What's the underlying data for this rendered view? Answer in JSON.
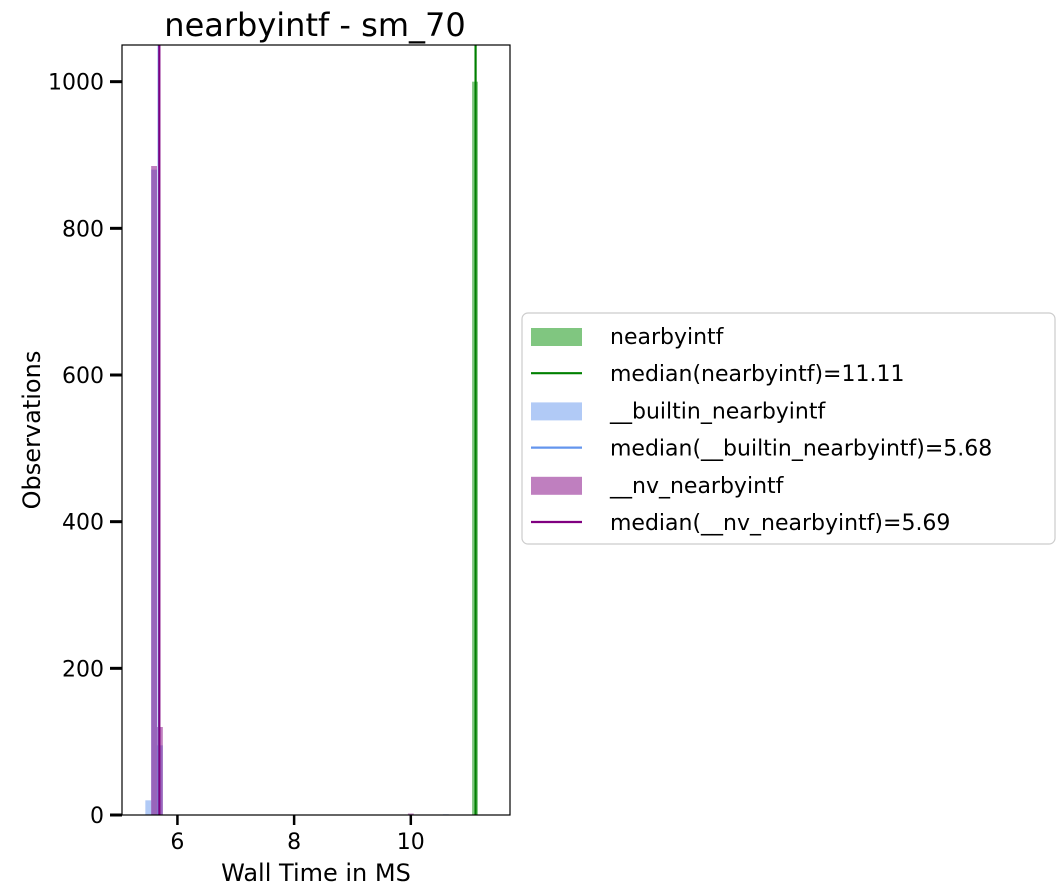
{
  "chart_data": {
    "type": "histogram",
    "title": "nearbyintf - sm_70",
    "xlabel": "Wall Time in MS",
    "ylabel": "Observations",
    "xlim": [
      5.05,
      11.7
    ],
    "ylim": [
      0,
      1050
    ],
    "xticks": [
      6,
      8,
      10
    ],
    "yticks": [
      0,
      200,
      400,
      600,
      800,
      1000
    ],
    "bin_width": 0.1,
    "grid": false,
    "legend_position": "outside-right",
    "series": [
      {
        "name": "nearbyintf",
        "color": "#2ca02c",
        "alpha": 0.6,
        "bins": [
          {
            "x": 11.1,
            "count": 1000
          }
        ]
      },
      {
        "name": "__builtin_nearbyintf",
        "color": "#6495ed",
        "alpha": 0.5,
        "bins": [
          {
            "x": 5.5,
            "count": 20
          },
          {
            "x": 5.6,
            "count": 880
          },
          {
            "x": 5.7,
            "count": 95
          },
          {
            "x": 10.6,
            "count": 1
          }
        ]
      },
      {
        "name": "__nv_nearbyintf",
        "color": "#800080",
        "alpha": 0.5,
        "bins": [
          {
            "x": 5.6,
            "count": 885
          },
          {
            "x": 5.7,
            "count": 120
          },
          {
            "x": 10.0,
            "count": 2
          }
        ]
      }
    ],
    "medians": [
      {
        "label": "median(nearbyintf)=11.11",
        "value": 11.11,
        "color": "#008000"
      },
      {
        "label": "median(__builtin_nearbyintf)=5.68",
        "value": 5.68,
        "color": "#6495ed"
      },
      {
        "label": "median(__nv_nearbyintf)=5.69",
        "value": 5.69,
        "color": "#800080"
      }
    ],
    "legend": [
      {
        "kind": "patch",
        "label": "nearbyintf",
        "color": "#2ca02c",
        "alpha": 0.6
      },
      {
        "kind": "line",
        "label": "median(nearbyintf)=11.11",
        "color": "#008000"
      },
      {
        "kind": "patch",
        "label": "__builtin_nearbyintf",
        "color": "#6495ed",
        "alpha": 0.5
      },
      {
        "kind": "line",
        "label": "median(__builtin_nearbyintf)=5.68",
        "color": "#6495ed"
      },
      {
        "kind": "patch",
        "label": "__nv_nearbyintf",
        "color": "#800080",
        "alpha": 0.5
      },
      {
        "kind": "line",
        "label": "median(__nv_nearbyintf)=5.69",
        "color": "#800080"
      }
    ]
  }
}
